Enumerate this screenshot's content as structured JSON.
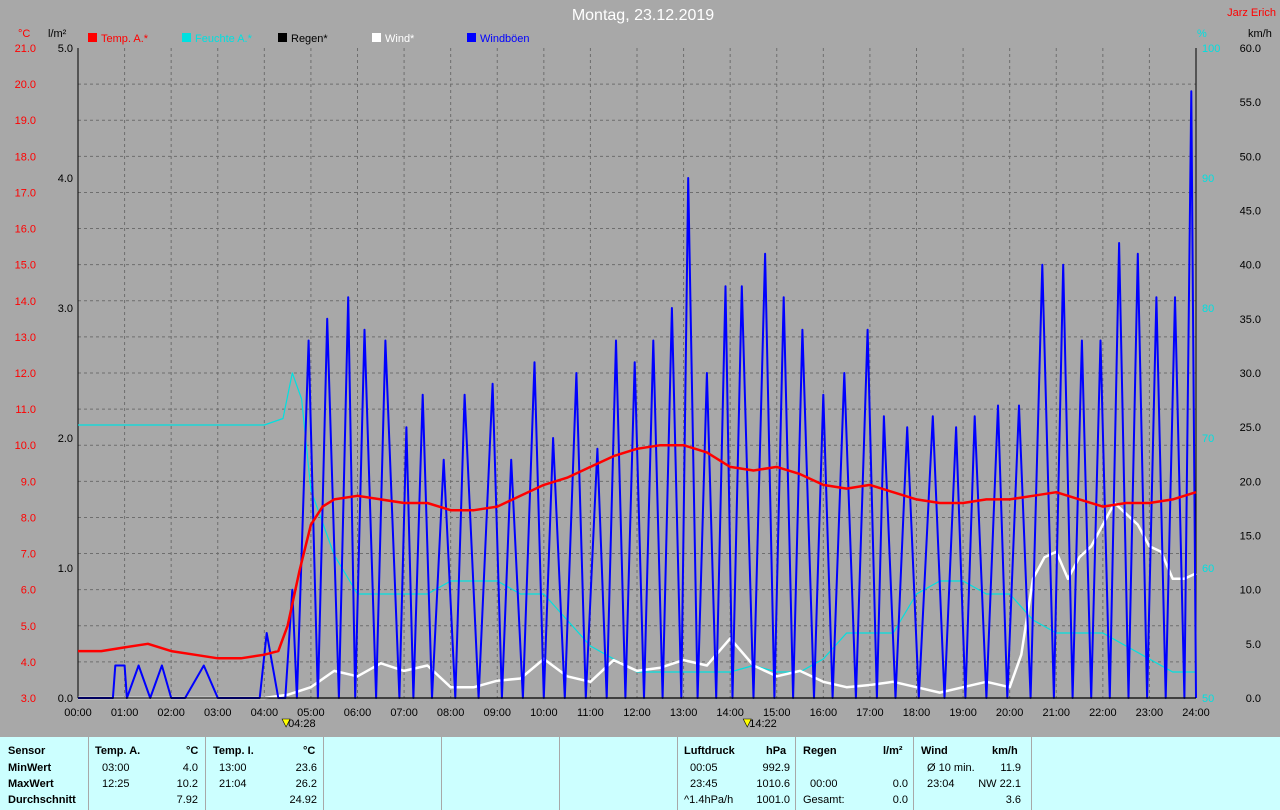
{
  "title": "Montag, 23.12.2019",
  "author": "Jarz Erich",
  "units": {
    "temp": "°C",
    "rain": "l/m²",
    "pct": "%",
    "wind": "km/h"
  },
  "legend": [
    {
      "label": "Temp. A.*",
      "color": "#ff0000"
    },
    {
      "label": "Feuchte A.*",
      "color": "#00e0e0"
    },
    {
      "label": "Regen*",
      "color": "#000000"
    },
    {
      "label": "Wind*",
      "color": "#ffffff"
    },
    {
      "label": "Windböen",
      "color": "#0000ff"
    }
  ],
  "markers": [
    {
      "time": "04:28"
    },
    {
      "time": "14:22"
    }
  ],
  "chart_data": {
    "type": "line",
    "x_ticks": [
      "00:00",
      "01:00",
      "02:00",
      "03:00",
      "04:00",
      "05:00",
      "06:00",
      "07:00",
      "08:00",
      "09:00",
      "10:00",
      "11:00",
      "12:00",
      "13:00",
      "14:00",
      "15:00",
      "16:00",
      "17:00",
      "18:00",
      "19:00",
      "20:00",
      "21:00",
      "22:00",
      "23:00",
      "24:00"
    ],
    "temp_axis": {
      "ticks": [
        "3.0",
        "4.0",
        "5.0",
        "6.0",
        "7.0",
        "8.0",
        "9.0",
        "10.0",
        "11.0",
        "12.0",
        "13.0",
        "14.0",
        "15.0",
        "16.0",
        "17.0",
        "18.0",
        "19.0",
        "20.0",
        "21.0"
      ],
      "ylim": [
        3,
        21
      ]
    },
    "rain_axis": {
      "ticks": [
        "0.0",
        "1.0",
        "2.0",
        "3.0",
        "4.0",
        "5.0"
      ],
      "ylim": [
        0,
        5
      ]
    },
    "hum_axis": {
      "ticks": [
        "50",
        "60",
        "70",
        "80",
        "90",
        "100"
      ],
      "ylim": [
        0,
        100
      ]
    },
    "wind_axis": {
      "ticks": [
        "0.0",
        "5.0",
        "10.0",
        "15.0",
        "20.0",
        "25.0",
        "30.0",
        "35.0",
        "40.0",
        "45.0",
        "50.0",
        "55.0",
        "60.0"
      ],
      "ylim": [
        0,
        60
      ]
    },
    "series": [
      {
        "name": "Temp. A.*",
        "color": "#ff0000",
        "axis": "temp",
        "x": [
          0,
          0.5,
          1,
          1.5,
          2,
          2.5,
          3,
          3.5,
          4,
          4.3,
          4.5,
          4.75,
          5,
          5.25,
          5.5,
          6,
          6.5,
          7,
          7.5,
          8,
          8.5,
          9,
          9.5,
          10,
          10.5,
          11,
          11.5,
          12,
          12.5,
          13,
          13.5,
          14,
          14.5,
          15,
          15.5,
          16,
          16.5,
          17,
          17.5,
          18,
          18.5,
          19,
          19.5,
          20,
          20.5,
          21,
          21.5,
          22,
          22.5,
          23,
          23.5,
          24
        ],
        "y": [
          4.3,
          4.3,
          4.4,
          4.5,
          4.3,
          4.2,
          4.1,
          4.1,
          4.2,
          4.3,
          5.0,
          6.5,
          7.8,
          8.3,
          8.5,
          8.6,
          8.5,
          8.4,
          8.4,
          8.2,
          8.2,
          8.3,
          8.6,
          8.9,
          9.1,
          9.4,
          9.7,
          9.9,
          10.0,
          10.0,
          9.8,
          9.4,
          9.3,
          9.4,
          9.2,
          8.9,
          8.8,
          8.9,
          8.7,
          8.5,
          8.4,
          8.4,
          8.5,
          8.5,
          8.6,
          8.7,
          8.5,
          8.3,
          8.4,
          8.4,
          8.5,
          8.7
        ]
      },
      {
        "name": "Feuchte A.*",
        "color": "#00e0e0",
        "axis": "hum",
        "x": [
          0,
          1,
          2,
          3,
          4,
          4.4,
          4.6,
          4.8,
          5,
          5.5,
          6,
          6.5,
          7,
          7.5,
          8,
          8.5,
          9,
          9.5,
          10,
          10.5,
          11,
          11.5,
          12,
          12.5,
          13,
          13.5,
          14,
          14.5,
          15,
          15.5,
          16,
          16.5,
          17,
          17.5,
          18,
          18.5,
          19,
          19.5,
          20,
          20.5,
          21,
          21.5,
          22,
          22.5,
          23,
          23.5,
          24
        ],
        "y": [
          71,
          71,
          71,
          71,
          71,
          71.5,
          75,
          73,
          66,
          61,
          58,
          58,
          58,
          58,
          59,
          59,
          59,
          58,
          58,
          56,
          54,
          53,
          52,
          52,
          52,
          52,
          52,
          52.5,
          52,
          52,
          53,
          55,
          55,
          55,
          58,
          59,
          59,
          58,
          58,
          56,
          55,
          55,
          55,
          54,
          53,
          52,
          52
        ]
      },
      {
        "name": "Regen*",
        "color": "#000000",
        "axis": "rain",
        "x": [
          0,
          24
        ],
        "y": [
          0.0,
          0.0
        ]
      },
      {
        "name": "Wind*",
        "color": "#ffffff",
        "axis": "wind",
        "x": [
          0,
          4,
          4.5,
          5,
          5.5,
          6,
          6.5,
          7,
          7.5,
          8,
          8.5,
          9,
          9.5,
          10,
          10.5,
          11,
          11.5,
          12,
          12.5,
          13,
          13.5,
          14,
          14.5,
          15,
          15.5,
          16,
          16.5,
          17,
          17.5,
          18,
          18.5,
          19,
          19.5,
          20,
          20.25,
          20.5,
          20.75,
          21,
          21.25,
          21.5,
          21.75,
          22,
          22.25,
          22.5,
          22.75,
          23,
          23.25,
          23.5,
          23.75,
          24
        ],
        "y": [
          0,
          0,
          0.3,
          1.0,
          2.5,
          2.0,
          3.2,
          2.5,
          3.0,
          1.0,
          1.0,
          1.6,
          1.8,
          3.6,
          2.0,
          1.5,
          3.5,
          2.5,
          2.8,
          3.5,
          3.0,
          5.5,
          3.0,
          2.0,
          2.5,
          1.5,
          1.0,
          1.2,
          1.5,
          1.0,
          0.5,
          1.0,
          1.5,
          1.0,
          4.0,
          11.0,
          13.0,
          13.5,
          11.0,
          13.0,
          14.0,
          16.0,
          18.0,
          17.0,
          16.0,
          14.0,
          13.5,
          11.0,
          11.0,
          11.5
        ]
      },
      {
        "name": "Windböen",
        "color": "#0000ff",
        "axis": "wind",
        "x": [
          0,
          0.75,
          0.8,
          1.0,
          1.05,
          1.3,
          1.55,
          1.8,
          2.0,
          2.3,
          2.7,
          3.0,
          3.5,
          3.9,
          4.05,
          4.3,
          4.45,
          4.6,
          4.7,
          4.95,
          5.15,
          5.35,
          5.6,
          5.8,
          5.95,
          6.15,
          6.4,
          6.6,
          6.9,
          7.05,
          7.2,
          7.4,
          7.6,
          7.85,
          8.1,
          8.3,
          8.6,
          8.9,
          9.1,
          9.3,
          9.55,
          9.8,
          10.0,
          10.2,
          10.45,
          10.7,
          10.9,
          11.15,
          11.35,
          11.55,
          11.75,
          11.95,
          12.15,
          12.35,
          12.55,
          12.75,
          12.95,
          13.1,
          13.3,
          13.5,
          13.7,
          13.9,
          14.05,
          14.25,
          14.5,
          14.75,
          14.95,
          15.15,
          15.35,
          15.55,
          15.8,
          16.0,
          16.2,
          16.45,
          16.7,
          16.95,
          17.15,
          17.3,
          17.55,
          17.8,
          18.05,
          18.35,
          18.6,
          18.85,
          19.05,
          19.25,
          19.5,
          19.75,
          19.95,
          20.2,
          20.45,
          20.7,
          20.95,
          21.15,
          21.35,
          21.55,
          21.75,
          21.95,
          22.15,
          22.35,
          22.55,
          22.75,
          22.95,
          23.15,
          23.35,
          23.55,
          23.75,
          23.9,
          24
        ],
        "y": [
          0,
          0,
          3,
          3,
          0,
          3,
          0,
          3,
          0,
          0,
          3,
          0,
          0,
          0,
          6,
          0,
          0,
          10,
          0,
          33,
          0,
          35,
          0,
          37,
          0,
          34,
          0,
          33,
          0,
          25,
          0,
          28,
          0,
          22,
          0,
          28,
          0,
          29,
          0,
          22,
          0,
          31,
          0,
          24,
          0,
          30,
          0,
          23,
          0,
          33,
          0,
          31,
          0,
          33,
          0,
          36,
          0,
          48,
          0,
          30,
          0,
          38,
          0,
          38,
          0,
          41,
          0,
          37,
          0,
          34,
          0,
          28,
          0,
          30,
          0,
          34,
          0,
          26,
          0,
          25,
          0,
          26,
          0,
          25,
          0,
          26,
          0,
          27,
          0,
          27,
          0,
          40,
          0,
          40,
          0,
          33,
          0,
          33,
          0,
          42,
          0,
          41,
          0,
          37,
          0,
          37,
          0,
          56,
          0
        ]
      }
    ]
  },
  "stats": {
    "sensor": {
      "h": "Sensor",
      "min": "MinWert",
      "max": "MaxWert",
      "avg": "Durchschnitt"
    },
    "temp_a": {
      "h": "Temp. A.",
      "u": "°C",
      "min_t": "03:00",
      "min_v": "4.0",
      "max_t": "12:25",
      "max_v": "10.2",
      "avg": "7.92"
    },
    "temp_i": {
      "h": "Temp. I.",
      "u": "°C",
      "min_t": "13:00",
      "min_v": "23.6",
      "max_t": "21:04",
      "max_v": "26.2",
      "avg": "24.92"
    },
    "druck": {
      "h": "Luftdruck",
      "u": "hPa",
      "min_t": "00:05",
      "min_v": "992.9",
      "max_t": "23:45",
      "max_v": "1010.6",
      "trend_l": "^1.4hPa/h",
      "trend_v": "1001.0"
    },
    "regen": {
      "h": "Regen",
      "u": "l/m²",
      "max_t": "00:00",
      "max_v": "0.0",
      "sum_l": "Gesamt:",
      "sum_v": "0.0"
    },
    "wind": {
      "h": "Wind",
      "u": "km/h",
      "min_t": "Ø 10 min.",
      "min_v": "11.9",
      "max_t": "23:04",
      "max_v": "NW 22.1",
      "avg": "3.6"
    }
  }
}
